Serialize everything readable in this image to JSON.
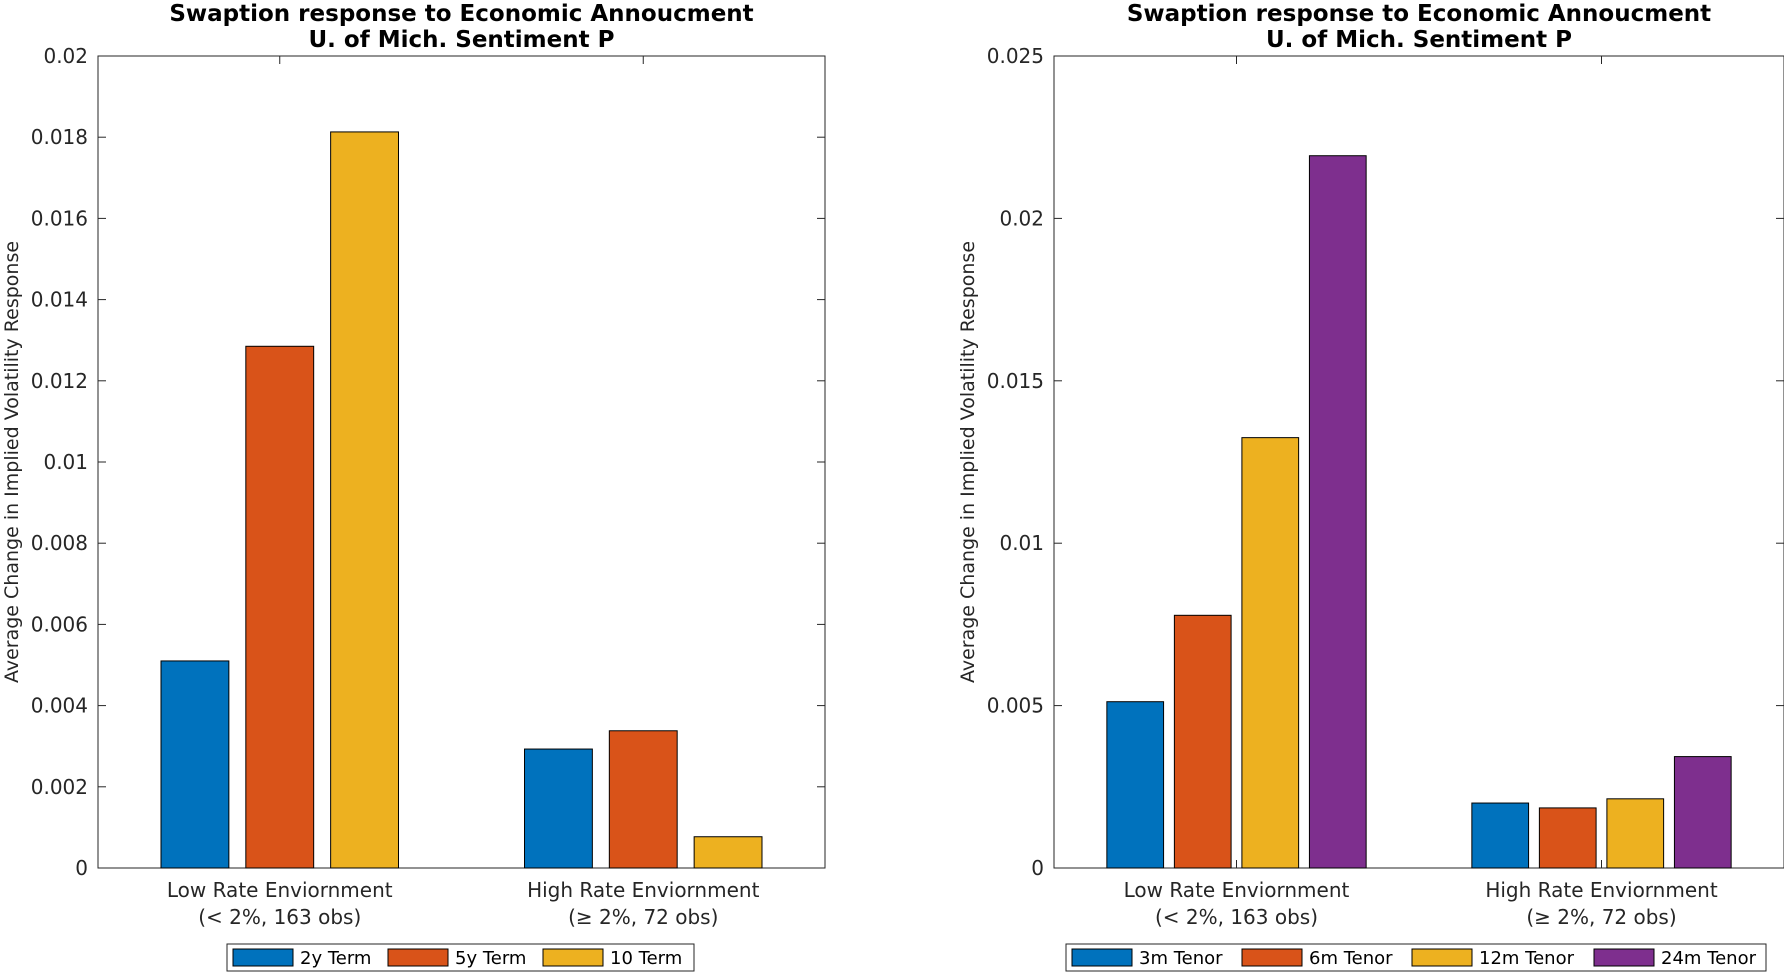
{
  "chart_data": [
    {
      "type": "bar",
      "title": "Swaption response to Economic Annoucment",
      "subtitle": "U. of Mich. Sentiment P",
      "xlabel": "",
      "ylabel": "Average Change in Implied Volatility Response",
      "categories": [
        [
          "Low Rate Enviornment",
          "(< 2%, 163 obs)"
        ],
        [
          "High Rate Enviornment",
          "(≥ 2%, 72 obs)"
        ]
      ],
      "ylim": [
        0,
        0.02
      ],
      "yticks": [
        0,
        0.002,
        0.004,
        0.006,
        0.008,
        0.01,
        0.012,
        0.014,
        0.016,
        0.018,
        0.02
      ],
      "ytick_labels": [
        "0",
        "0.002",
        "0.004",
        "0.006",
        "0.008",
        "0.01",
        "0.012",
        "0.014",
        "0.016",
        "0.018",
        "0.02"
      ],
      "legend_position": "bottom-outside",
      "series": [
        {
          "name": "2y Term",
          "color": "#0072BD",
          "values": [
            0.0051,
            0.00293
          ]
        },
        {
          "name": "5y Term",
          "color": "#D95319",
          "values": [
            0.01285,
            0.00338
          ]
        },
        {
          "name": "10 Term",
          "color": "#EDB120",
          "values": [
            0.01813,
            0.00077
          ]
        }
      ]
    },
    {
      "type": "bar",
      "title": "Swaption response to Economic Annoucment",
      "subtitle": "U. of Mich. Sentiment P",
      "xlabel": "",
      "ylabel": "Average Change in Implied Volatility Response",
      "categories": [
        [
          "Low Rate Enviornment",
          "(< 2%, 163 obs)"
        ],
        [
          "High Rate Enviornment",
          "(≥ 2%, 72 obs)"
        ]
      ],
      "ylim": [
        0,
        0.025
      ],
      "yticks": [
        0,
        0.005,
        0.01,
        0.015,
        0.02,
        0.025
      ],
      "ytick_labels": [
        "0",
        "0.005",
        "0.01",
        "0.015",
        "0.02",
        "0.025"
      ],
      "legend_position": "bottom-outside",
      "series": [
        {
          "name": "3m Tenor",
          "color": "#0072BD",
          "values": [
            0.00512,
            0.002
          ]
        },
        {
          "name": "6m Tenor",
          "color": "#D95319",
          "values": [
            0.00778,
            0.00185
          ]
        },
        {
          "name": "12m Tenor",
          "color": "#EDB120",
          "values": [
            0.01325,
            0.00213
          ]
        },
        {
          "name": "24m Tenor",
          "color": "#7E2F8E",
          "values": [
            0.02193,
            0.00343
          ]
        }
      ]
    }
  ]
}
